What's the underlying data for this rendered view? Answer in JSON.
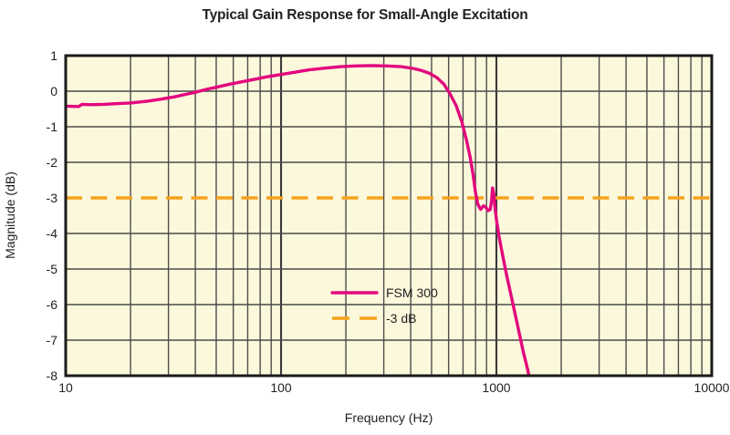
{
  "page": {
    "background": "#ffffff"
  },
  "chart_data": {
    "type": "line",
    "title": "Typical Gain Response for Small-Angle Excitation",
    "xlabel": "Frequency (Hz)",
    "ylabel": "Magnitude (dB)",
    "x_scale": "log",
    "xlim": [
      10,
      10000
    ],
    "ylim": [
      -8,
      1
    ],
    "x_ticks": [
      {
        "value": 10,
        "label": "10"
      },
      {
        "value": 100,
        "label": "100"
      },
      {
        "value": 1000,
        "label": "1000"
      },
      {
        "value": 10000,
        "label": "10000"
      }
    ],
    "y_ticks": [
      {
        "value": 1,
        "label": "1"
      },
      {
        "value": 0,
        "label": "0"
      },
      {
        "value": -1,
        "label": "-1"
      },
      {
        "value": -2,
        "label": "-2"
      },
      {
        "value": -3,
        "label": "-3"
      },
      {
        "value": -4,
        "label": "-4"
      },
      {
        "value": -5,
        "label": "-5"
      },
      {
        "value": -6,
        "label": "-6"
      },
      {
        "value": -7,
        "label": "-7"
      },
      {
        "value": -8,
        "label": "-8"
      }
    ],
    "grid": {
      "show": true,
      "minor_log_x": true,
      "minor_color": "#4d4d4d",
      "major_color": "#3a3a3a",
      "horizontal_color": "#4a4a4a"
    },
    "plot_bg": "#fcf8dc",
    "frame_color": "#1a1a1a",
    "legend": {
      "position": "inside-bottom-center"
    },
    "series": [
      {
        "name": "FSM 300",
        "type": "line",
        "style": "solid",
        "color": "#e2077d",
        "points": [
          [
            10,
            -0.42
          ],
          [
            11.5,
            -0.43
          ],
          [
            11.9,
            -0.37
          ],
          [
            13,
            -0.38
          ],
          [
            15,
            -0.37
          ],
          [
            17,
            -0.35
          ],
          [
            20,
            -0.33
          ],
          [
            24,
            -0.28
          ],
          [
            28,
            -0.22
          ],
          [
            32,
            -0.16
          ],
          [
            36,
            -0.09
          ],
          [
            40,
            -0.03
          ],
          [
            45,
            0.05
          ],
          [
            50,
            0.11
          ],
          [
            57,
            0.19
          ],
          [
            65,
            0.26
          ],
          [
            75,
            0.33
          ],
          [
            85,
            0.4
          ],
          [
            100,
            0.47
          ],
          [
            115,
            0.53
          ],
          [
            135,
            0.6
          ],
          [
            160,
            0.65
          ],
          [
            190,
            0.69
          ],
          [
            220,
            0.71
          ],
          [
            260,
            0.72
          ],
          [
            310,
            0.71
          ],
          [
            360,
            0.69
          ],
          [
            410,
            0.64
          ],
          [
            450,
            0.58
          ],
          [
            490,
            0.5
          ],
          [
            530,
            0.38
          ],
          [
            570,
            0.2
          ],
          [
            610,
            -0.08
          ],
          [
            650,
            -0.4
          ],
          [
            690,
            -0.85
          ],
          [
            725,
            -1.35
          ],
          [
            755,
            -1.85
          ],
          [
            780,
            -2.35
          ],
          [
            800,
            -2.85
          ],
          [
            820,
            -3.18
          ],
          [
            845,
            -3.32
          ],
          [
            872,
            -3.22
          ],
          [
            895,
            -3.27
          ],
          [
            915,
            -3.36
          ],
          [
            935,
            -3.33
          ],
          [
            950,
            -3.1
          ],
          [
            960,
            -2.72
          ],
          [
            972,
            -2.88
          ],
          [
            985,
            -3.28
          ],
          [
            1000,
            -3.6
          ],
          [
            1030,
            -4.1
          ],
          [
            1070,
            -4.62
          ],
          [
            1120,
            -5.22
          ],
          [
            1180,
            -5.85
          ],
          [
            1250,
            -6.55
          ],
          [
            1330,
            -7.3
          ],
          [
            1400,
            -7.85
          ],
          [
            1460,
            -8.45
          ]
        ]
      },
      {
        "name": "-3 dB",
        "type": "hline",
        "style": "dashed",
        "color": "#f6a21c",
        "y": -3
      }
    ]
  }
}
